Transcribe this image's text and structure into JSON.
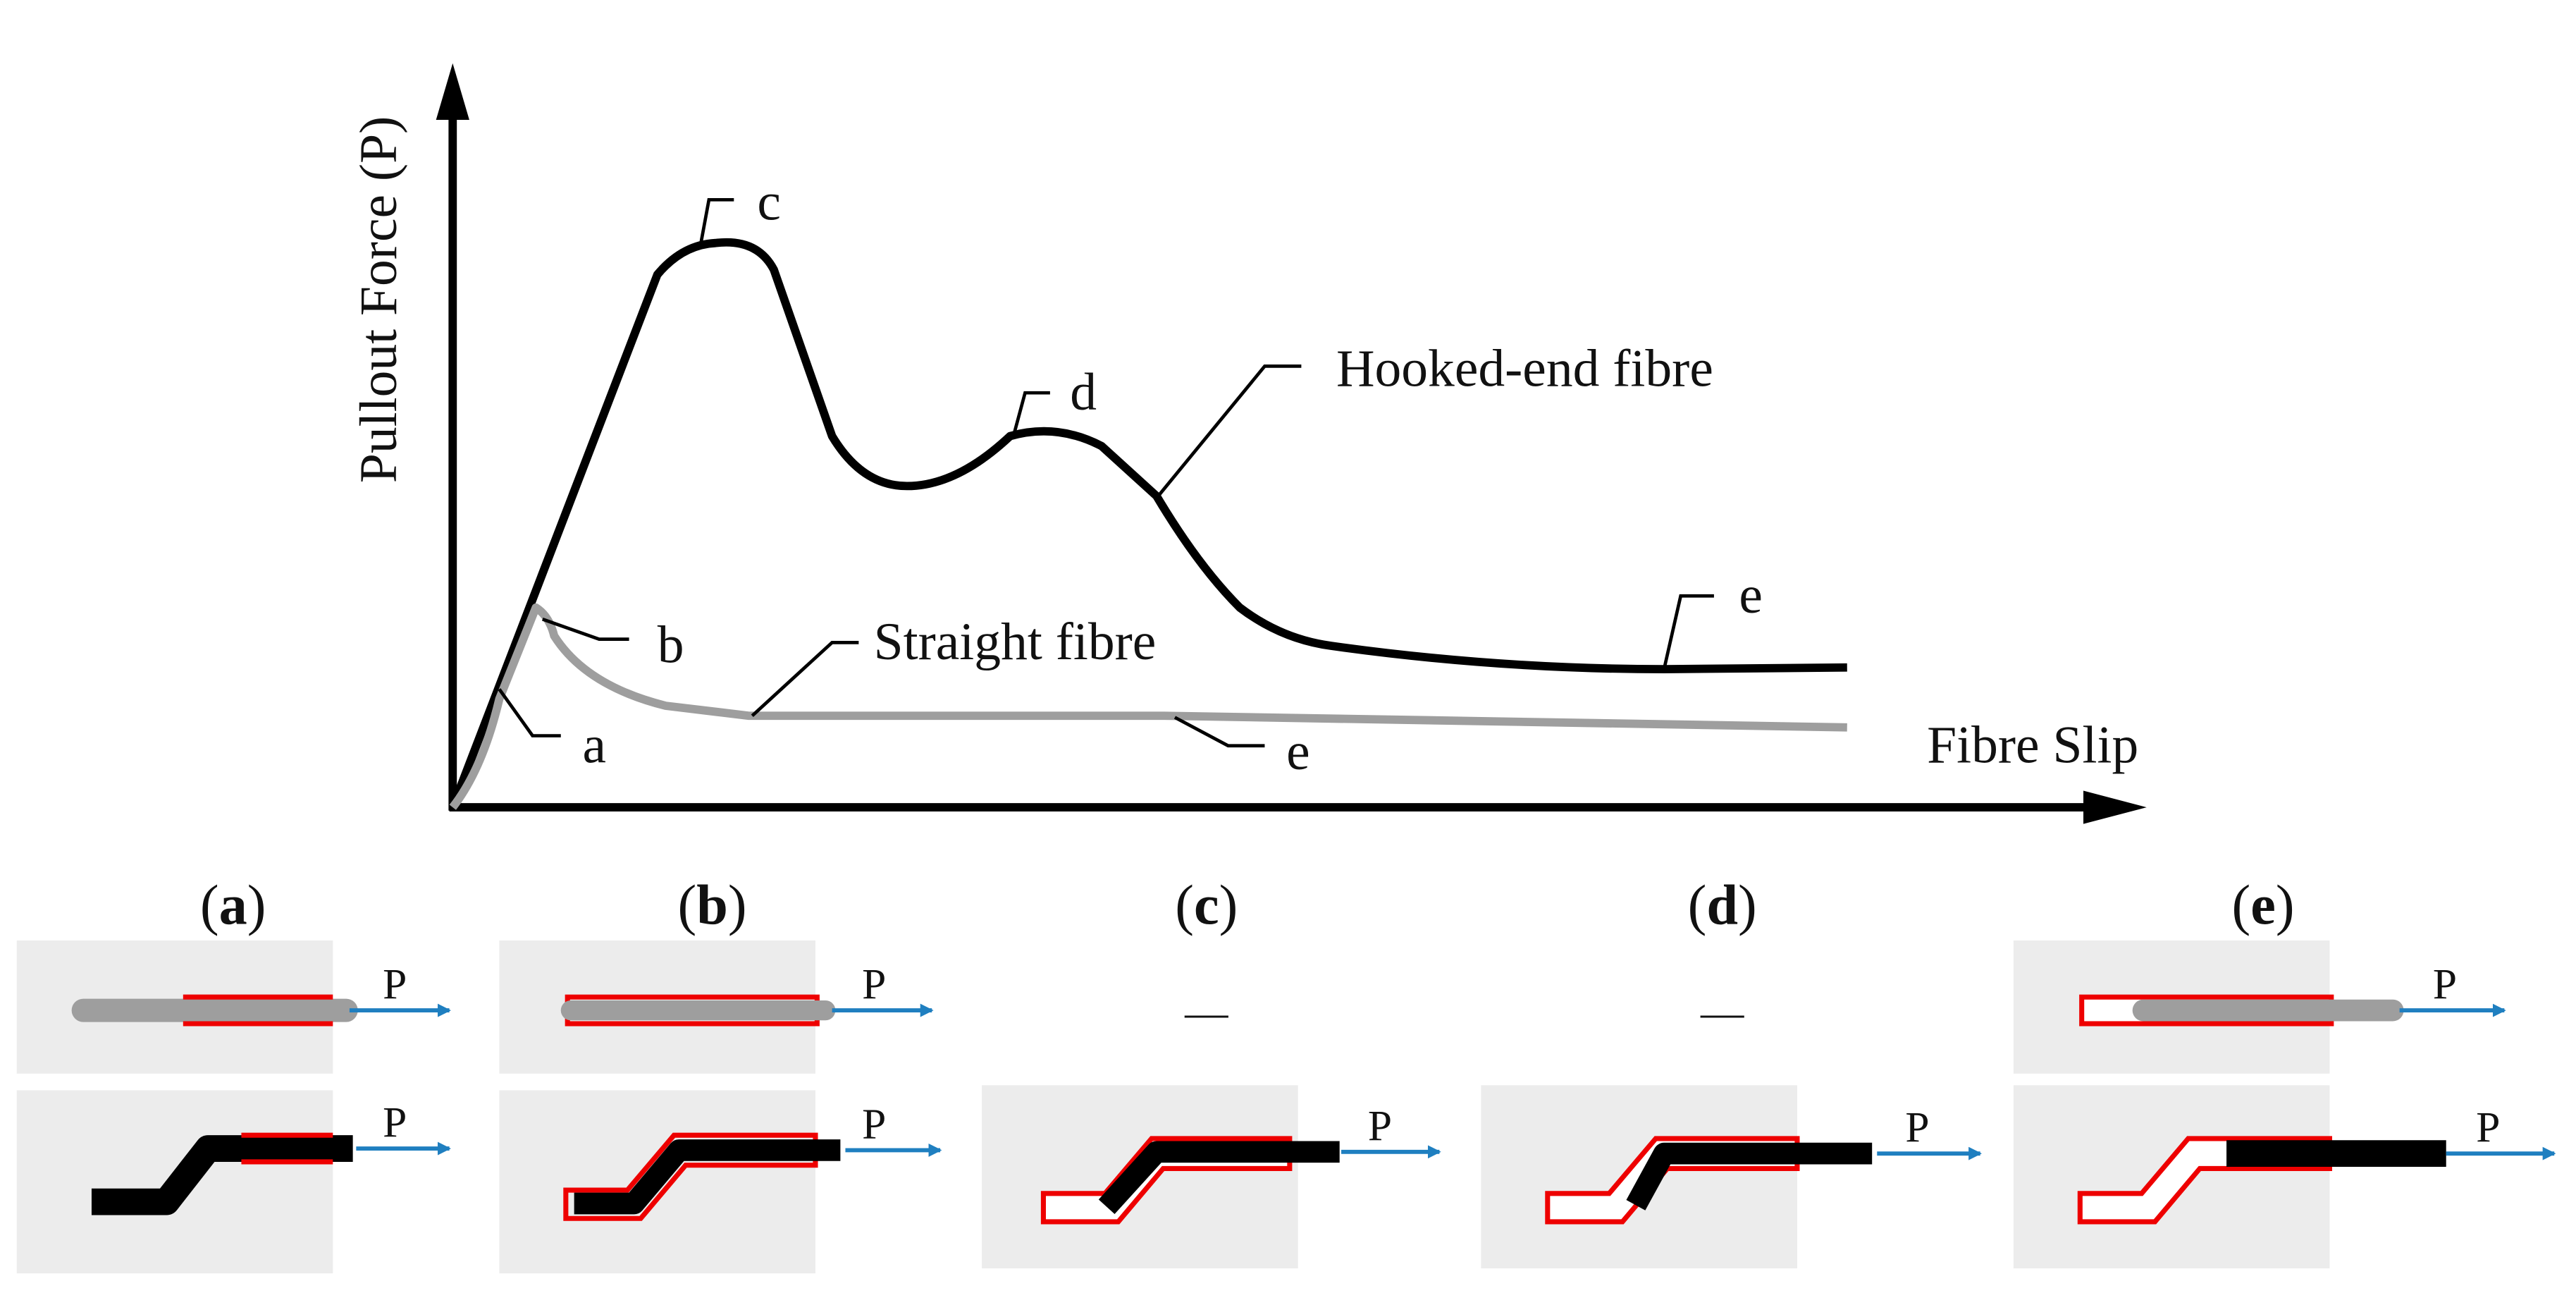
{
  "axes": {
    "y_label": "Pullout Force (P)",
    "x_label": "Fibre Slip"
  },
  "curves": [
    {
      "name": "Hooked-end fibre",
      "points": [
        "c",
        "d",
        "e"
      ]
    },
    {
      "name": "Straight fibre",
      "points": [
        "a",
        "b",
        "e"
      ]
    }
  ],
  "panels": [
    {
      "open": "(",
      "letter": "a",
      "close": ")",
      "straight": "P",
      "hooked": "P"
    },
    {
      "open": "(",
      "letter": "b",
      "close": ")",
      "straight": "P",
      "hooked": "P"
    },
    {
      "open": "(",
      "letter": "c",
      "close": ")",
      "straight": "—",
      "hooked": "P"
    },
    {
      "open": "(",
      "letter": "d",
      "close": ")",
      "straight": "—",
      "hooked": "P"
    },
    {
      "open": "(",
      "letter": "e",
      "close": ")",
      "straight": "P",
      "hooked": "P"
    }
  ]
}
